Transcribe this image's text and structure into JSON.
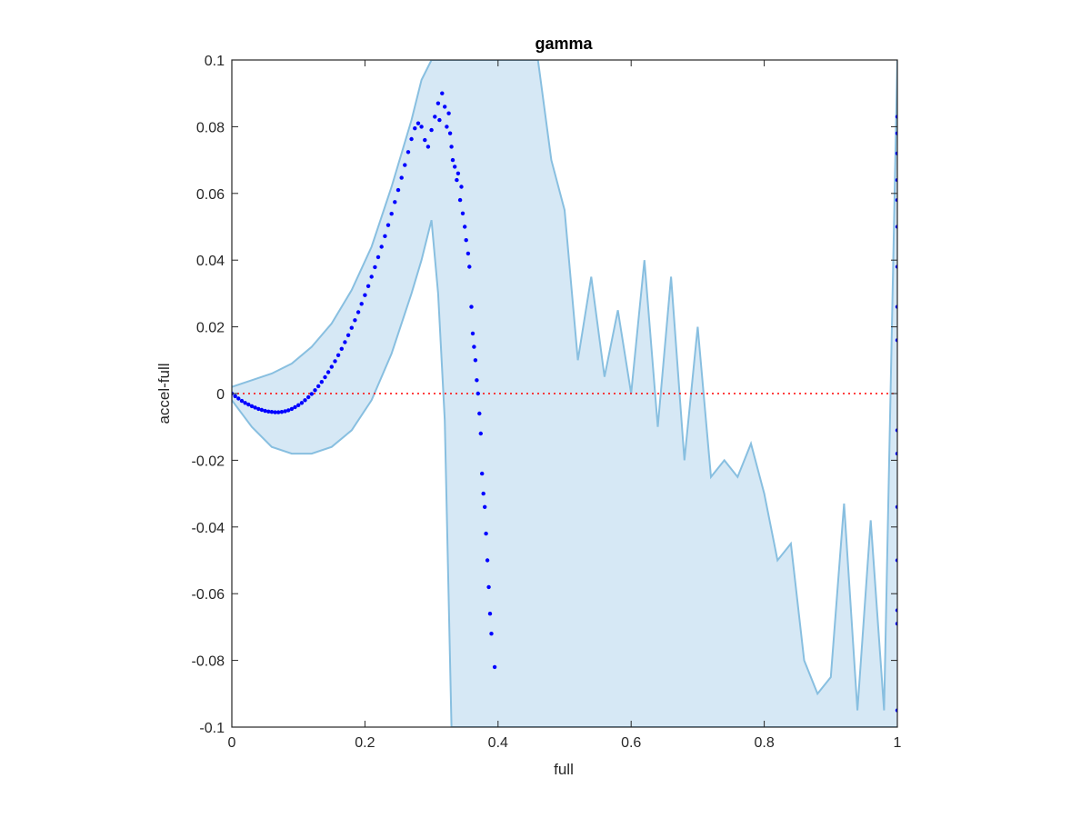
{
  "chart_data": {
    "type": "scatter",
    "title": "gamma",
    "xlabel": "full",
    "ylabel": "accel-full",
    "xlim": [
      0,
      1
    ],
    "ylim": [
      -0.1,
      0.1
    ],
    "x_ticks": [
      0,
      0.2,
      0.4,
      0.6,
      0.8,
      1
    ],
    "x_tick_labels": [
      "0",
      "0.2",
      "0.4",
      "0.6",
      "0.8",
      "1"
    ],
    "y_ticks": [
      -0.1,
      -0.08,
      -0.06,
      -0.04,
      -0.02,
      0,
      0.02,
      0.04,
      0.06,
      0.08,
      0.1
    ],
    "y_tick_labels": [
      "-0.1",
      "-0.08",
      "-0.06",
      "-0.04",
      "-0.02",
      "0",
      "0.02",
      "0.04",
      "0.06",
      "0.08",
      "0.1"
    ],
    "grid": false,
    "reference_line": {
      "y": 0,
      "style": "dotted",
      "color": "#ff0000"
    },
    "colors": {
      "points": "#0000ff",
      "band_line": "#88bfe0",
      "band_fill": "#d6e8f5",
      "axes": "#262626"
    },
    "series": [
      {
        "style": "scatter",
        "x": [
          0.0,
          0.005,
          0.01,
          0.015,
          0.02,
          0.025,
          0.03,
          0.035,
          0.04,
          0.045,
          0.05,
          0.055,
          0.06,
          0.065,
          0.07,
          0.075,
          0.08,
          0.085,
          0.09,
          0.095,
          0.1,
          0.105,
          0.11,
          0.115,
          0.12,
          0.125,
          0.13,
          0.135,
          0.14,
          0.145,
          0.15,
          0.155,
          0.16,
          0.165,
          0.17,
          0.175,
          0.18,
          0.185,
          0.19,
          0.195,
          0.2,
          0.205,
          0.21,
          0.215,
          0.22,
          0.225,
          0.23,
          0.235,
          0.24,
          0.245,
          0.25,
          0.255,
          0.26,
          0.265,
          0.27,
          0.275,
          0.28,
          0.285,
          0.29,
          0.295,
          0.3,
          0.305,
          0.31,
          0.312,
          0.316,
          0.32,
          0.323,
          0.326,
          0.328,
          0.33,
          0.332,
          0.335,
          0.338,
          0.34,
          0.343,
          0.345,
          0.347,
          0.35,
          0.352,
          0.355,
          0.357,
          0.36,
          0.362,
          0.364,
          0.366,
          0.368,
          0.37,
          0.372,
          0.374,
          0.376,
          0.378,
          0.38,
          0.382,
          0.384,
          0.386,
          0.388,
          0.39,
          0.395,
          1.0,
          1.0,
          1.0,
          1.0,
          1.0,
          1.0,
          1.0,
          1.0,
          1.0,
          1.0,
          1.0,
          1.0,
          1.0,
          1.0,
          1.0,
          1.0
        ],
        "y": [
          0.0,
          -0.0008,
          -0.0015,
          -0.0022,
          -0.0028,
          -0.0033,
          -0.0038,
          -0.0042,
          -0.0046,
          -0.0049,
          -0.0052,
          -0.0054,
          -0.0055,
          -0.0056,
          -0.0056,
          -0.0055,
          -0.0053,
          -0.005,
          -0.0046,
          -0.0041,
          -0.0035,
          -0.0028,
          -0.002,
          -0.0011,
          -0.0001,
          0.001,
          0.0022,
          0.0035,
          0.0049,
          0.0064,
          0.008,
          0.0097,
          0.0115,
          0.0134,
          0.0154,
          0.0175,
          0.0197,
          0.022,
          0.0244,
          0.0269,
          0.0295,
          0.0322,
          0.035,
          0.0379,
          0.0409,
          0.044,
          0.0472,
          0.0505,
          0.0539,
          0.0574,
          0.061,
          0.0647,
          0.0685,
          0.0724,
          0.0763,
          0.0795,
          0.081,
          0.08,
          0.076,
          0.074,
          0.079,
          0.083,
          0.087,
          0.082,
          0.09,
          0.086,
          0.08,
          0.084,
          0.078,
          0.074,
          0.07,
          0.068,
          0.064,
          0.066,
          0.058,
          0.062,
          0.054,
          0.05,
          0.046,
          0.042,
          0.038,
          0.026,
          0.018,
          0.014,
          0.01,
          0.004,
          0.0,
          -0.006,
          -0.012,
          -0.024,
          -0.03,
          -0.034,
          -0.042,
          -0.05,
          -0.058,
          -0.066,
          -0.072,
          -0.082,
          0.083,
          0.078,
          0.072,
          0.064,
          0.058,
          0.05,
          0.038,
          0.026,
          0.016,
          -0.011,
          -0.018,
          -0.034,
          -0.05,
          -0.065,
          -0.069,
          -0.095
        ]
      },
      {
        "style": "band-upper",
        "x": [
          0.0,
          0.03,
          0.06,
          0.09,
          0.12,
          0.15,
          0.18,
          0.21,
          0.24,
          0.27,
          0.285,
          0.3,
          0.31,
          0.32,
          0.33,
          0.34,
          0.35,
          0.36,
          0.37,
          0.38,
          0.39,
          0.4,
          0.42,
          0.44,
          0.45,
          0.46,
          0.48,
          0.5,
          0.52,
          0.54,
          0.56,
          0.58,
          0.6,
          0.62,
          0.64,
          0.66,
          0.68,
          0.7,
          0.72,
          0.74,
          0.76,
          0.78,
          0.8,
          0.82,
          0.84,
          0.86,
          0.88,
          0.9,
          0.92,
          0.94,
          0.96,
          0.98,
          1.0
        ],
        "y": [
          0.002,
          0.004,
          0.006,
          0.009,
          0.014,
          0.021,
          0.031,
          0.044,
          0.062,
          0.082,
          0.094,
          0.1,
          0.1,
          0.1,
          0.1,
          0.1,
          0.1,
          0.1,
          0.1,
          0.1,
          0.1,
          0.1,
          0.1,
          0.1,
          0.1,
          0.1,
          0.07,
          0.055,
          0.01,
          0.035,
          0.005,
          0.025,
          0.0,
          0.04,
          -0.01,
          0.035,
          -0.02,
          0.02,
          -0.025,
          -0.02,
          -0.025,
          -0.015,
          -0.03,
          -0.05,
          -0.045,
          -0.08,
          -0.09,
          -0.085,
          -0.033,
          -0.095,
          -0.038,
          -0.095,
          0.1
        ]
      },
      {
        "style": "band-lower",
        "x": [
          0.0,
          0.03,
          0.06,
          0.09,
          0.12,
          0.15,
          0.18,
          0.21,
          0.24,
          0.27,
          0.285,
          0.3,
          0.31,
          0.32,
          0.33,
          0.34,
          0.35,
          0.36,
          0.37,
          0.38,
          0.39,
          0.4,
          0.42,
          0.44,
          0.45,
          0.46,
          0.48,
          0.5,
          0.52,
          0.54,
          0.56,
          0.58,
          0.6,
          0.62,
          0.64,
          0.66,
          0.68,
          0.7,
          0.72,
          0.74,
          0.76,
          0.78,
          0.8,
          0.82,
          0.84,
          0.86,
          0.88,
          0.9,
          0.92,
          0.94,
          0.96,
          0.98,
          1.0
        ],
        "y": [
          -0.002,
          -0.01,
          -0.016,
          -0.018,
          -0.018,
          -0.016,
          -0.011,
          -0.002,
          0.012,
          0.03,
          0.04,
          0.052,
          0.03,
          -0.008,
          -0.1,
          -0.1,
          -0.1,
          -0.1,
          -0.1,
          -0.1,
          -0.1,
          -0.1,
          -0.1,
          -0.1,
          -0.1,
          -0.1,
          -0.1,
          -0.1,
          -0.1,
          -0.1,
          -0.1,
          -0.1,
          -0.1,
          -0.1,
          -0.1,
          -0.1,
          -0.1,
          -0.1,
          -0.1,
          -0.1,
          -0.1,
          -0.1,
          -0.1,
          -0.1,
          -0.1,
          -0.1,
          -0.1,
          -0.1,
          -0.1,
          -0.1,
          -0.1,
          -0.1,
          -0.1
        ]
      }
    ]
  }
}
